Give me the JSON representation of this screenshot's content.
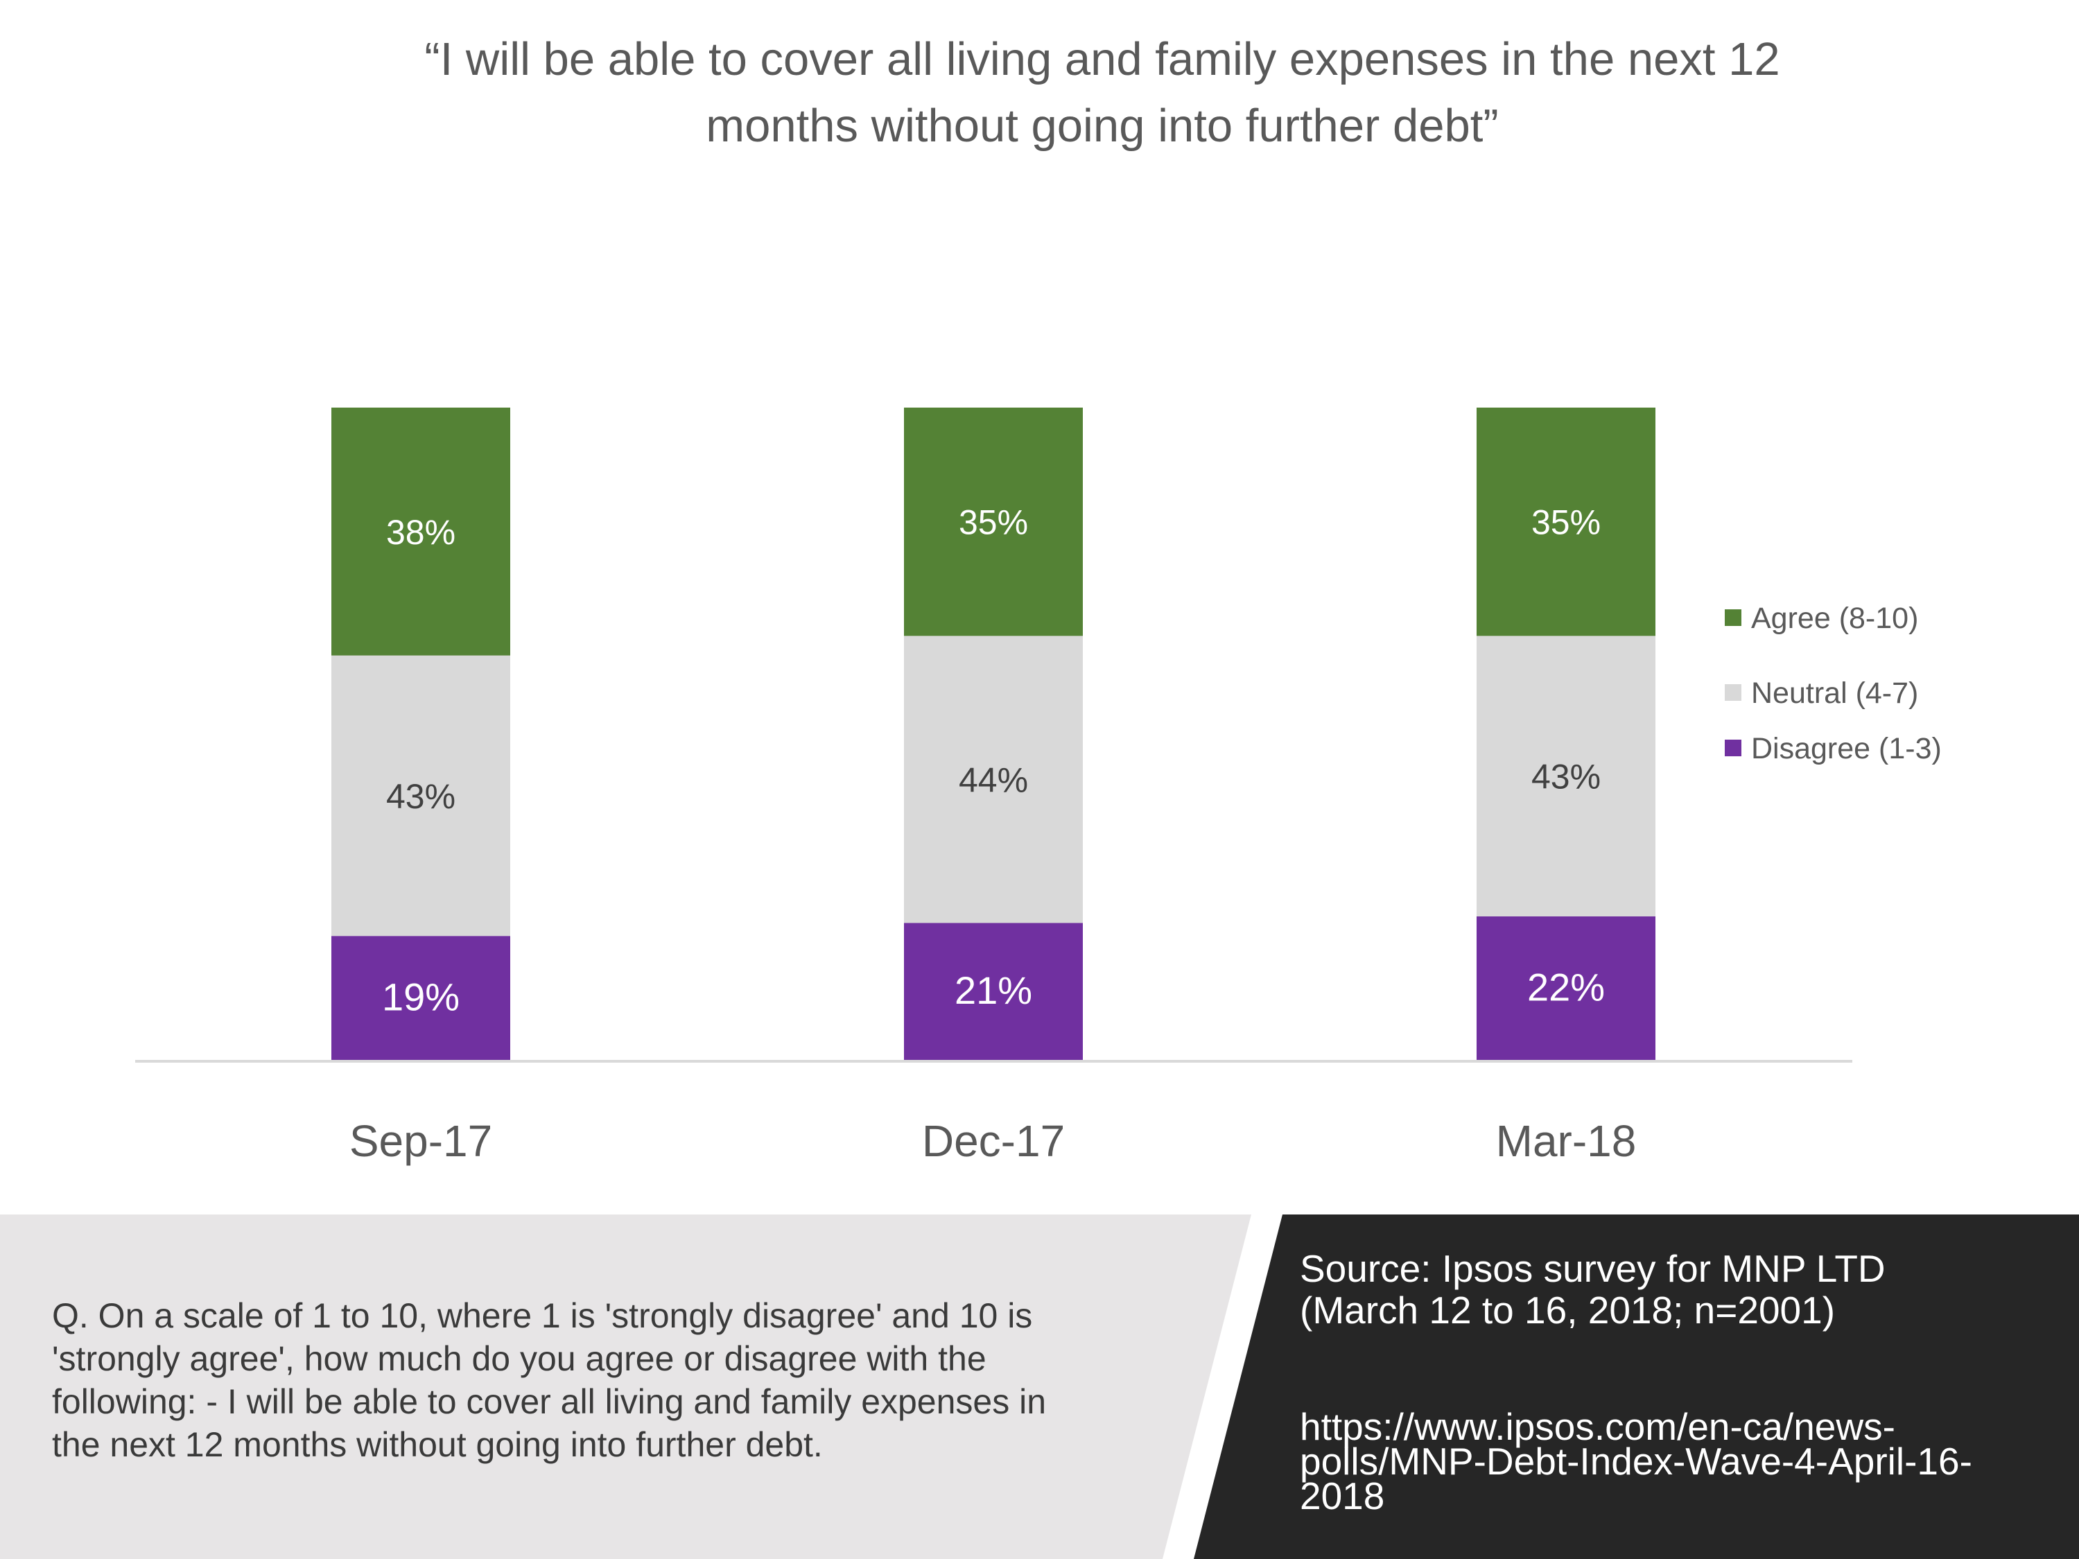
{
  "title_lines": [
    "“I will be able to cover all living and family expenses in the next 12",
    "months without going into further debt”"
  ],
  "chart_data": {
    "type": "bar",
    "stacked": true,
    "percent_stacked": true,
    "categories": [
      "Sep-17",
      "Dec-17",
      "Mar-18"
    ],
    "series": [
      {
        "name": "Disagree (1-3)",
        "color": "#7030a0",
        "values": [
          19,
          21,
          22
        ],
        "labels": [
          "19%",
          "21%",
          "22%"
        ],
        "label_color": "#ffffff"
      },
      {
        "name": "Neutral (4-7)",
        "color": "#d9d9d9",
        "values": [
          43,
          44,
          43
        ],
        "labels": [
          "43%",
          "44%",
          "43%"
        ],
        "label_color": "#404040"
      },
      {
        "name": "Agree (8-10)",
        "color": "#548235",
        "values": [
          38,
          35,
          35
        ],
        "labels": [
          "38%",
          "35%",
          "35%"
        ],
        "label_color": "#ffffff"
      }
    ],
    "ylim": [
      0,
      100
    ],
    "grid": false,
    "legend_position": "right",
    "legend_order": [
      "Agree (8-10)",
      "Neutral (4-7)",
      "Disagree (1-3)"
    ]
  },
  "footer": {
    "question_lines": [
      "Q. On a scale of 1 to 10, where 1 is 'strongly disagree' and 10 is",
      "'strongly agree', how much do you agree or disagree with the",
      "following: - I will be able to cover all living and family expenses in",
      "the next 12 months without going into further debt."
    ],
    "source_lines": [
      "Source:  Ipsos survey for MNP LTD",
      "(March 12 to 16, 2018; n=2001)"
    ],
    "url_lines": [
      "https://www.ipsos.com/en-ca/news-",
      "polls/MNP-Debt-Index-Wave-4-April-16-",
      "2018"
    ],
    "left_panel_color": "#e7e5e6",
    "right_panel_color": "#262626"
  }
}
